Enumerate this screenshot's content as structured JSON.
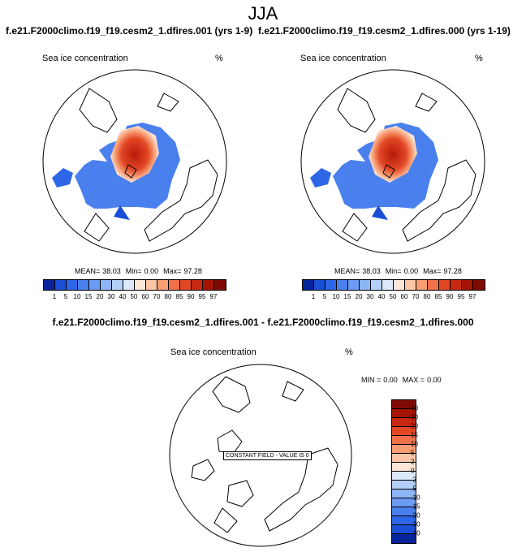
{
  "season": "JJA",
  "titles": {
    "left": "f.e21.F2000climo.f19_f19.cesm2_1.dfires.001 (yrs 1-9)",
    "right": "f.e21.F2000climo.f19_f19.cesm2_1.dfires.000 (yrs 1-19)",
    "difference": "f.e21.F2000climo.f19_f19.cesm2_1.dfires.001 - f.e21.F2000climo.f19_f19.cesm2_1.dfires.000"
  },
  "panels": {
    "left": {
      "variable": "Sea ice concentration",
      "unit": "%",
      "stats": {
        "mean_label": "MEAN=",
        "mean": "38.03",
        "min_label": "Min=",
        "min": "0.00",
        "max_label": "Max=",
        "max": "97.28"
      }
    },
    "right": {
      "variable": "Sea ice concentration",
      "unit": "%",
      "stats": {
        "mean_label": "MEAN=",
        "mean": "38.03",
        "min_label": "Min=",
        "min": "0.00",
        "max_label": "Max=",
        "max": "97.28"
      }
    },
    "difference": {
      "variable": "Sea ice concentration",
      "unit": "%",
      "stats": {
        "min_label": "MIN =",
        "min": "0.00",
        "max_label": "MAX =",
        "max": "0.00"
      },
      "constant_field_label": "CONSTANT FIELD - VALUE IS 0"
    }
  },
  "colorbars": {
    "main": {
      "ticks": [
        "1",
        "5",
        "10",
        "15",
        "20",
        "30",
        "40",
        "50",
        "60",
        "70",
        "80",
        "85",
        "90",
        "95",
        "97"
      ],
      "colors": [
        "#08249a",
        "#1a4ed6",
        "#2e66e8",
        "#4a80ee",
        "#6b9af2",
        "#8db5f6",
        "#b4cff8",
        "#dce9fb",
        "#fde6d8",
        "#fbc5a6",
        "#f79d73",
        "#f07148",
        "#e24725",
        "#c62810",
        "#a51305",
        "#7e0a03"
      ]
    },
    "difference": {
      "ticks": [
        "40",
        "30",
        "20",
        "15",
        "10",
        "5",
        "2",
        "0",
        "-2",
        "-5",
        "-10",
        "-15",
        "-20",
        "-30",
        "-40"
      ],
      "colors": [
        "#7e0a03",
        "#a51305",
        "#c62810",
        "#e24725",
        "#f07148",
        "#f79d73",
        "#fbc5a6",
        "#fde6d8",
        "#dce9fb",
        "#b4cff8",
        "#8db5f6",
        "#6b9af2",
        "#4a80ee",
        "#2e66e8",
        "#1a4ed6",
        "#08249a"
      ]
    }
  }
}
